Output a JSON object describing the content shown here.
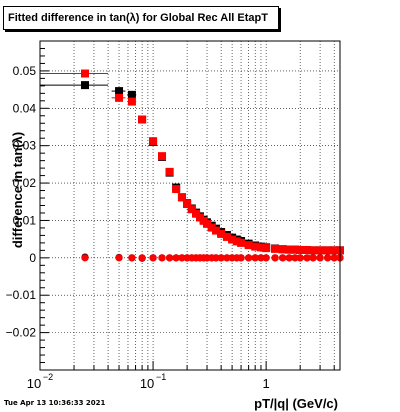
{
  "page": {
    "title": "Fitted difference in tan(λ) for Global Rec All EtapT",
    "footer": "Tue Apr 13 10:36:33 2021"
  },
  "colors": {
    "series_black": "#000000",
    "series_red": "#ff0000",
    "grid": "#000000"
  },
  "chart_data": {
    "type": "scatter",
    "title": "Fitted difference in tan(λ) for Global Rec All EtapT",
    "xlabel": "pT/|q| (GeV/c)",
    "ylabel": "difference in tan(λ)",
    "xscale": "log",
    "xlim": [
      0.01,
      4.5
    ],
    "ylim": [
      -0.03,
      0.058
    ],
    "grid": true,
    "legend": "none",
    "x_ticks": [
      {
        "value": 0.01,
        "label": "10",
        "sup": "−2"
      },
      {
        "value": 0.1,
        "label": "10",
        "sup": "−1"
      },
      {
        "value": 1,
        "label": "1",
        "sup": ""
      }
    ],
    "y_ticks": [
      {
        "value": -0.02,
        "label": "−0.02"
      },
      {
        "value": -0.01,
        "label": "−0.01"
      },
      {
        "value": 0,
        "label": "0"
      },
      {
        "value": 0.01,
        "label": "0.01"
      },
      {
        "value": 0.02,
        "label": "0.02"
      },
      {
        "value": 0.03,
        "label": "0.03"
      },
      {
        "value": 0.04,
        "label": "0.04"
      },
      {
        "value": 0.05,
        "label": "0.05"
      }
    ],
    "series": [
      {
        "color": "#000000",
        "kind": "mean",
        "x": [
          0.025,
          0.05,
          0.065,
          0.08,
          0.1,
          0.12,
          0.14,
          0.16,
          0.18,
          0.2,
          0.22,
          0.24,
          0.26,
          0.28,
          0.3,
          0.33,
          0.36,
          0.4,
          0.45,
          0.5,
          0.55,
          0.6,
          0.7,
          0.8,
          0.9,
          1.0,
          1.2,
          1.4,
          1.6,
          1.8,
          2.0,
          2.3,
          2.6,
          3.0,
          3.5,
          4.0,
          4.5
        ],
        "y": [
          0.0462,
          0.0446,
          0.0436,
          0.037,
          0.031,
          0.027,
          0.0228,
          0.0188,
          0.0162,
          0.0146,
          0.0132,
          0.0121,
          0.0111,
          0.0102,
          0.0095,
          0.0086,
          0.0078,
          0.0069,
          0.0061,
          0.0054,
          0.0049,
          0.0045,
          0.0038,
          0.0033,
          0.003,
          0.0028,
          0.0025,
          0.0023,
          0.0022,
          0.0022,
          0.0021,
          0.0021,
          0.002,
          0.002,
          0.002,
          0.002,
          0.002
        ],
        "xerr_low": [
          0.015,
          0.007,
          0.006,
          0.006,
          0.008,
          0.008,
          0.008,
          0.008,
          0.008,
          0.008,
          0.008,
          0.008,
          0.008,
          0.008,
          0.01,
          0.012,
          0.014,
          0.016,
          0.018,
          0.02,
          0.022,
          0.024,
          0.03,
          0.035,
          0.04,
          0.045,
          0.06,
          0.07,
          0.08,
          0.09,
          0.1,
          0.11,
          0.12,
          0.15,
          0.18,
          0.2,
          0.25
        ],
        "xerr_high": [
          0.015,
          0.007,
          0.006,
          0.006,
          0.008,
          0.008,
          0.008,
          0.008,
          0.008,
          0.008,
          0.008,
          0.008,
          0.008,
          0.008,
          0.01,
          0.012,
          0.014,
          0.016,
          0.018,
          0.02,
          0.022,
          0.024,
          0.03,
          0.035,
          0.04,
          0.045,
          0.06,
          0.07,
          0.08,
          0.09,
          0.1,
          0.11,
          0.12,
          0.15,
          0.18,
          0.2,
          0.25
        ]
      },
      {
        "color": "#ff0000",
        "kind": "mean",
        "x": [
          0.025,
          0.05,
          0.065,
          0.08,
          0.1,
          0.12,
          0.14,
          0.16,
          0.18,
          0.2,
          0.22,
          0.24,
          0.26,
          0.28,
          0.3,
          0.33,
          0.36,
          0.4,
          0.45,
          0.5,
          0.55,
          0.6,
          0.7,
          0.8,
          0.9,
          1.0,
          1.2,
          1.4,
          1.6,
          1.8,
          2.0,
          2.3,
          2.6,
          3.0,
          3.5,
          4.0,
          4.5
        ],
        "y": [
          0.0493,
          0.0428,
          0.0418,
          0.037,
          0.0312,
          0.0272,
          0.023,
          0.0184,
          0.0162,
          0.0144,
          0.013,
          0.0118,
          0.0108,
          0.0099,
          0.0091,
          0.0081,
          0.0073,
          0.0064,
          0.0056,
          0.0049,
          0.0044,
          0.004,
          0.0034,
          0.003,
          0.0028,
          0.0026,
          0.0024,
          0.0023,
          0.0022,
          0.0022,
          0.0021,
          0.0021,
          0.002,
          0.002,
          0.002,
          0.002,
          0.002
        ],
        "xerr_low": [
          0.015,
          0.007,
          0.006,
          0.006,
          0.008,
          0.008,
          0.008,
          0.008,
          0.008,
          0.008,
          0.008,
          0.008,
          0.008,
          0.008,
          0.01,
          0.012,
          0.014,
          0.016,
          0.018,
          0.02,
          0.022,
          0.024,
          0.03,
          0.035,
          0.04,
          0.045,
          0.06,
          0.07,
          0.08,
          0.09,
          0.1,
          0.11,
          0.12,
          0.15,
          0.18,
          0.2,
          0.25
        ],
        "xerr_high": [
          0.015,
          0.007,
          0.006,
          0.006,
          0.008,
          0.008,
          0.008,
          0.008,
          0.008,
          0.008,
          0.008,
          0.008,
          0.008,
          0.008,
          0.01,
          0.012,
          0.014,
          0.016,
          0.018,
          0.02,
          0.022,
          0.024,
          0.03,
          0.035,
          0.04,
          0.045,
          0.06,
          0.07,
          0.08,
          0.09,
          0.1,
          0.11,
          0.12,
          0.15,
          0.18,
          0.2,
          0.25
        ]
      },
      {
        "color": "#000000",
        "kind": "offset",
        "x": [
          0.025,
          0.05,
          0.065,
          0.08,
          0.1,
          0.12,
          0.14,
          0.16,
          0.18,
          0.2,
          0.22,
          0.24,
          0.26,
          0.28,
          0.3,
          0.33,
          0.36,
          0.4,
          0.45,
          0.5,
          0.55,
          0.6,
          0.7,
          0.8,
          0.9,
          1.0,
          1.2,
          1.4,
          1.6,
          1.8,
          2.0,
          2.3,
          2.6,
          3.0,
          3.5,
          4.0,
          4.5
        ],
        "y": [
          0.0002,
          0.0001,
          0.0,
          -0.0001,
          0.0,
          0.0,
          0.0,
          0.0,
          0.0,
          0.0,
          0.0,
          0.0,
          0.0,
          0.0,
          0.0,
          0.0,
          0.0,
          0.0,
          0.0,
          0.0,
          0.0,
          0.0,
          0.0,
          0.0,
          0.0,
          0.0,
          0.0,
          0.0,
          0.0,
          0.0,
          0.0,
          0.0,
          0.0,
          0.0,
          0.0,
          0.0,
          0.0
        ]
      },
      {
        "color": "#ff0000",
        "kind": "offset",
        "x": [
          0.025,
          0.05,
          0.065,
          0.08,
          0.1,
          0.12,
          0.14,
          0.16,
          0.18,
          0.2,
          0.22,
          0.24,
          0.26,
          0.28,
          0.3,
          0.33,
          0.36,
          0.4,
          0.45,
          0.5,
          0.55,
          0.6,
          0.7,
          0.8,
          0.9,
          1.0,
          1.2,
          1.4,
          1.6,
          1.8,
          2.0,
          2.3,
          2.6,
          3.0,
          3.5,
          4.0,
          4.5
        ],
        "y": [
          0.0,
          0.0,
          0.0,
          0.0,
          0.0,
          0.0,
          0.0,
          0.0,
          0.0,
          0.0,
          0.0,
          0.0,
          0.0,
          0.0,
          0.0,
          0.0,
          0.0,
          0.0,
          0.0,
          0.0,
          0.0,
          0.0,
          0.0,
          0.0,
          0.0,
          0.0,
          0.0,
          0.0,
          0.0,
          0.0,
          0.0,
          0.0,
          0.0,
          0.0,
          0.0,
          0.0,
          0.0
        ]
      }
    ]
  }
}
